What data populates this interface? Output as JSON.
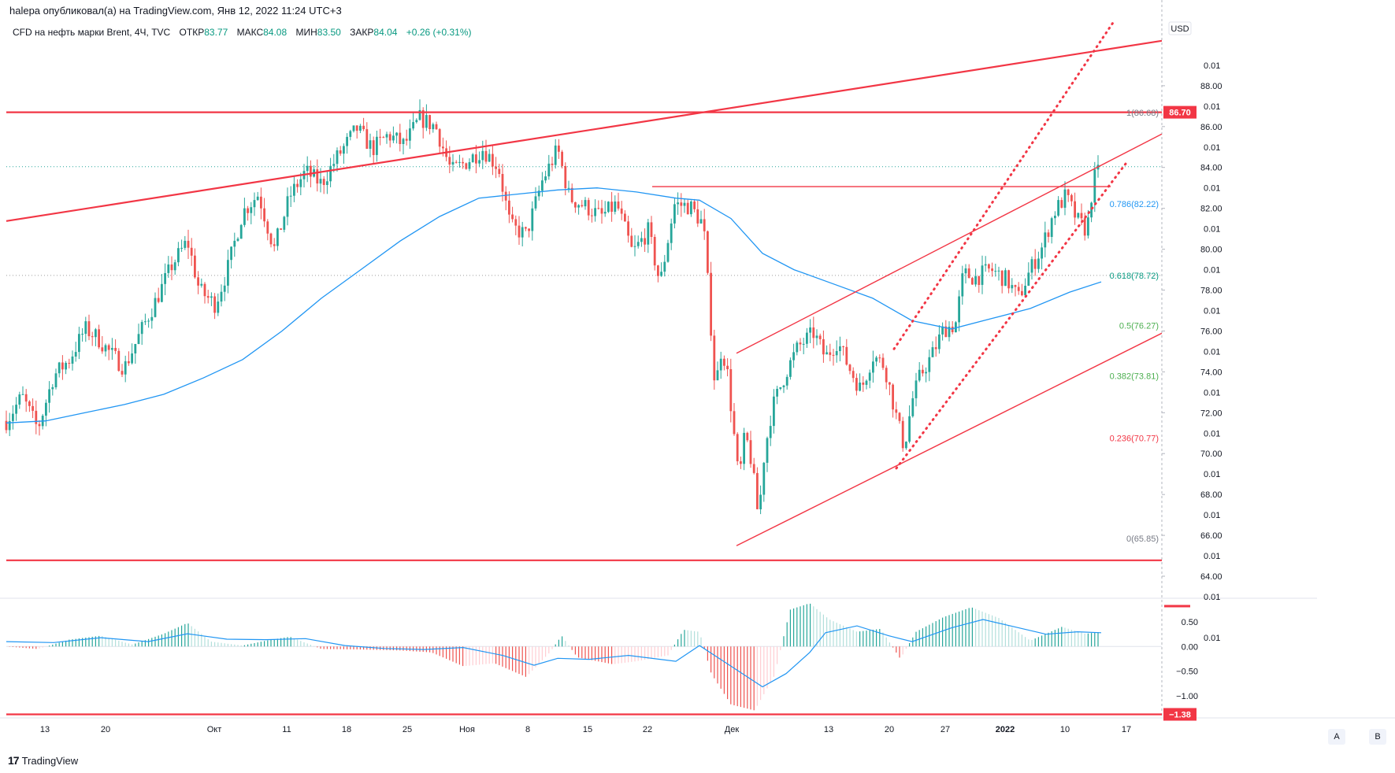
{
  "published": "halepa опубликовал(а) на TradingView.com, Янв 12, 2022 11:24 UTC+3",
  "legend": {
    "symbol": "CFD на нефть марки Brent, 4Ч, TVC",
    "open_label": "ОТКР",
    "open": "83.77",
    "high_label": "МАКС",
    "high": "84.08",
    "low_label": "МИН",
    "low": "83.50",
    "close_label": "ЗАКР",
    "close": "84.04",
    "change": "+0.26 (+0.31%)"
  },
  "currency": "USD",
  "logo_text": "TradingView",
  "buttons": {
    "a": "A",
    "b": "B"
  },
  "colors": {
    "up": "#26a69a",
    "down": "#ef5350",
    "ma": "#2196f3",
    "lines": "#f23645",
    "fib_dotted": "#089981",
    "macd_pos_strong": "#26a69a",
    "macd_pos_weak": "#b2dfdb",
    "macd_neg_strong": "#ef5350",
    "macd_neg_weak": "#ffcdd2"
  },
  "chart_data": {
    "type": "candlestick",
    "price_ylim": [
      63.0,
      91.5
    ],
    "price_ticks": [
      "88.00",
      "86.00",
      "84.00",
      "82.00",
      "80.00",
      "78.00",
      "76.00",
      "74.00",
      "72.00",
      "70.00",
      "68.00",
      "66.00",
      "64.00"
    ],
    "interleaved_ticks": [
      "0.01",
      "0.01",
      "0.01",
      "0.01",
      "0.01",
      "0.01",
      "0.01",
      "0.01",
      "0.01",
      "0.01",
      "0.01",
      "0.01",
      "0.01",
      "0.01",
      "0.01"
    ],
    "price_badge": "86.70",
    "macd_ticks": [
      "0.50",
      "0.00",
      "−0.50",
      "−1.00"
    ],
    "macd_badge": "−1.38",
    "x_ticks": [
      "13",
      "20",
      "Окт",
      "11",
      "18",
      "25",
      "Ноя",
      "8",
      "15",
      "22",
      "Дек",
      "13",
      "20",
      "27",
      "2022",
      "10",
      "17"
    ],
    "fib_levels": [
      {
        "label": "1(86.68)",
        "value": 86.68
      },
      {
        "label": "0.786(82.22)",
        "value": 82.22
      },
      {
        "label": "0.618(78.72)",
        "value": 78.72
      },
      {
        "label": "0.5(76.27)",
        "value": 76.27
      },
      {
        "label": "0.382(73.81)",
        "value": 73.81
      },
      {
        "label": "0.236(70.77)",
        "value": 70.77
      },
      {
        "label": "0(65.85)",
        "value": 65.85
      }
    ],
    "last_price": 84.04,
    "price_path": [
      [
        0,
        71.6
      ],
      [
        20,
        72.8
      ],
      [
        40,
        71.2
      ],
      [
        60,
        73.8
      ],
      [
        80,
        74.6
      ],
      [
        100,
        76.1
      ],
      [
        115,
        75.7
      ],
      [
        130,
        75.0
      ],
      [
        150,
        74.2
      ],
      [
        170,
        75.9
      ],
      [
        190,
        77.5
      ],
      [
        210,
        79.2
      ],
      [
        230,
        80.4
      ],
      [
        245,
        78.0
      ],
      [
        265,
        77.3
      ],
      [
        280,
        78.9
      ],
      [
        300,
        81.8
      ],
      [
        320,
        82.7
      ],
      [
        340,
        80.0
      ],
      [
        360,
        82.6
      ],
      [
        380,
        83.8
      ],
      [
        400,
        83.2
      ],
      [
        420,
        84.5
      ],
      [
        445,
        85.9
      ],
      [
        465,
        84.9
      ],
      [
        485,
        85.6
      ],
      [
        505,
        85.1
      ],
      [
        525,
        86.4
      ],
      [
        545,
        86.0
      ],
      [
        565,
        83.8
      ],
      [
        585,
        84.3
      ],
      [
        605,
        84.9
      ],
      [
        625,
        84.0
      ],
      [
        640,
        81.1
      ],
      [
        660,
        80.7
      ],
      [
        680,
        83.3
      ],
      [
        700,
        84.9
      ],
      [
        715,
        82.5
      ],
      [
        735,
        82.1
      ],
      [
        755,
        81.6
      ],
      [
        775,
        82.2
      ],
      [
        795,
        79.8
      ],
      [
        815,
        80.9
      ],
      [
        830,
        78.3
      ],
      [
        848,
        82.2
      ],
      [
        868,
        82.1
      ],
      [
        885,
        81.2
      ],
      [
        893,
        77.1
      ],
      [
        900,
        73.1
      ],
      [
        908,
        75.2
      ],
      [
        915,
        74.1
      ],
      [
        922,
        71.6
      ],
      [
        930,
        68.6
      ],
      [
        938,
        71.0
      ],
      [
        946,
        69.6
      ],
      [
        955,
        66.8
      ],
      [
        962,
        69.9
      ],
      [
        972,
        72.2
      ],
      [
        990,
        74.0
      ],
      [
        1005,
        75.2
      ],
      [
        1025,
        75.9
      ],
      [
        1040,
        74.7
      ],
      [
        1055,
        75.5
      ],
      [
        1070,
        74.2
      ],
      [
        1085,
        73.1
      ],
      [
        1100,
        74.8
      ],
      [
        1115,
        74.3
      ],
      [
        1130,
        71.8
      ],
      [
        1140,
        70.3
      ],
      [
        1150,
        72.6
      ],
      [
        1160,
        73.8
      ],
      [
        1175,
        74.8
      ],
      [
        1190,
        76.1
      ],
      [
        1205,
        76.3
      ],
      [
        1215,
        78.8
      ],
      [
        1230,
        78.6
      ],
      [
        1250,
        79.0
      ],
      [
        1270,
        78.5
      ],
      [
        1285,
        77.6
      ],
      [
        1300,
        79.0
      ],
      [
        1315,
        80.1
      ],
      [
        1330,
        81.8
      ],
      [
        1345,
        82.6
      ],
      [
        1360,
        81.4
      ],
      [
        1372,
        80.9
      ],
      [
        1380,
        83.4
      ],
      [
        1390,
        84.0
      ]
    ],
    "ma_path": [
      [
        0,
        71.5
      ],
      [
        50,
        71.6
      ],
      [
        100,
        72.0
      ],
      [
        150,
        72.4
      ],
      [
        200,
        72.9
      ],
      [
        250,
        73.7
      ],
      [
        300,
        74.6
      ],
      [
        350,
        76.0
      ],
      [
        400,
        77.6
      ],
      [
        450,
        79.0
      ],
      [
        500,
        80.4
      ],
      [
        550,
        81.6
      ],
      [
        600,
        82.5
      ],
      [
        650,
        82.7
      ],
      [
        700,
        82.9
      ],
      [
        750,
        83.0
      ],
      [
        800,
        82.8
      ],
      [
        850,
        82.5
      ],
      [
        880,
        82.4
      ],
      [
        920,
        81.5
      ],
      [
        960,
        79.8
      ],
      [
        1000,
        79.0
      ],
      [
        1050,
        78.3
      ],
      [
        1100,
        77.6
      ],
      [
        1150,
        76.5
      ],
      [
        1200,
        76.1
      ],
      [
        1250,
        76.6
      ],
      [
        1300,
        77.1
      ],
      [
        1350,
        77.9
      ],
      [
        1390,
        78.4
      ]
    ],
    "macd_path": [
      [
        0,
        0.1
      ],
      [
        60,
        0.08
      ],
      [
        120,
        0.18
      ],
      [
        180,
        0.1
      ],
      [
        230,
        0.26
      ],
      [
        280,
        0.15
      ],
      [
        330,
        0.14
      ],
      [
        380,
        0.16
      ],
      [
        430,
        0.02
      ],
      [
        480,
        -0.04
      ],
      [
        530,
        -0.06
      ],
      [
        580,
        -0.02
      ],
      [
        630,
        -0.18
      ],
      [
        670,
        -0.38
      ],
      [
        700,
        -0.24
      ],
      [
        740,
        -0.26
      ],
      [
        790,
        -0.18
      ],
      [
        850,
        -0.3
      ],
      [
        880,
        0.02
      ],
      [
        920,
        -0.4
      ],
      [
        960,
        -0.82
      ],
      [
        990,
        -0.55
      ],
      [
        1020,
        -0.12
      ],
      [
        1040,
        0.28
      ],
      [
        1080,
        0.42
      ],
      [
        1120,
        0.22
      ],
      [
        1150,
        0.1
      ],
      [
        1200,
        0.38
      ],
      [
        1240,
        0.55
      ],
      [
        1280,
        0.4
      ],
      [
        1320,
        0.25
      ],
      [
        1360,
        0.3
      ],
      [
        1390,
        0.28
      ]
    ],
    "macd_hist_path": [
      [
        0,
        0.0
      ],
      [
        40,
        -0.05
      ],
      [
        80,
        0.14
      ],
      [
        120,
        0.22
      ],
      [
        160,
        0.04
      ],
      [
        200,
        0.26
      ],
      [
        230,
        0.48
      ],
      [
        260,
        0.1
      ],
      [
        300,
        0.02
      ],
      [
        330,
        0.12
      ],
      [
        360,
        0.2
      ],
      [
        400,
        -0.05
      ],
      [
        450,
        -0.06
      ],
      [
        500,
        -0.08
      ],
      [
        540,
        -0.12
      ],
      [
        580,
        -0.4
      ],
      [
        620,
        -0.34
      ],
      [
        660,
        -0.62
      ],
      [
        690,
        -0.12
      ],
      [
        705,
        0.22
      ],
      [
        725,
        -0.22
      ],
      [
        770,
        -0.36
      ],
      [
        800,
        -0.3
      ],
      [
        840,
        -0.18
      ],
      [
        860,
        0.34
      ],
      [
        880,
        0.3
      ],
      [
        895,
        -0.55
      ],
      [
        920,
        -1.18
      ],
      [
        950,
        -1.3
      ],
      [
        975,
        -0.6
      ],
      [
        995,
        0.75
      ],
      [
        1020,
        0.88
      ],
      [
        1045,
        0.55
      ],
      [
        1080,
        0.3
      ],
      [
        1110,
        0.36
      ],
      [
        1135,
        -0.25
      ],
      [
        1155,
        0.3
      ],
      [
        1190,
        0.6
      ],
      [
        1225,
        0.8
      ],
      [
        1260,
        0.58
      ],
      [
        1300,
        0.12
      ],
      [
        1340,
        0.4
      ],
      [
        1370,
        0.26
      ],
      [
        1390,
        0.3
      ]
    ],
    "trend_lines": [
      {
        "kind": "solid",
        "width": 2.2,
        "p1": [
          8,
          81.38
        ],
        "p2": [
          1475,
          90.2
        ]
      },
      {
        "kind": "solid",
        "width": 2.2,
        "p1": [
          8,
          86.7
        ],
        "p2": [
          1475,
          86.7
        ]
      },
      {
        "kind": "solid",
        "width": 2.2,
        "p1": [
          8,
          64.78
        ],
        "p2": [
          1475,
          64.78
        ]
      },
      {
        "kind": "solid",
        "width": 1.4,
        "p1": [
          828,
          83.06
        ],
        "p2": [
          1410,
          83.06
        ]
      },
      {
        "kind": "solid",
        "width": 1.4,
        "p1": [
          935,
          74.91
        ],
        "p2": [
          1475,
          85.64
        ]
      },
      {
        "kind": "solid",
        "width": 1.4,
        "p1": [
          935,
          65.49
        ],
        "p2": [
          1475,
          75.89
        ]
      },
      {
        "kind": "dotted",
        "width": 3,
        "p1": [
          1135,
          75.12
        ],
        "p2": [
          1415,
          91.2
        ]
      },
      {
        "kind": "dotted",
        "width": 3,
        "p1": [
          1138,
          69.28
        ],
        "p2": [
          1430,
          84.23
        ]
      }
    ]
  }
}
